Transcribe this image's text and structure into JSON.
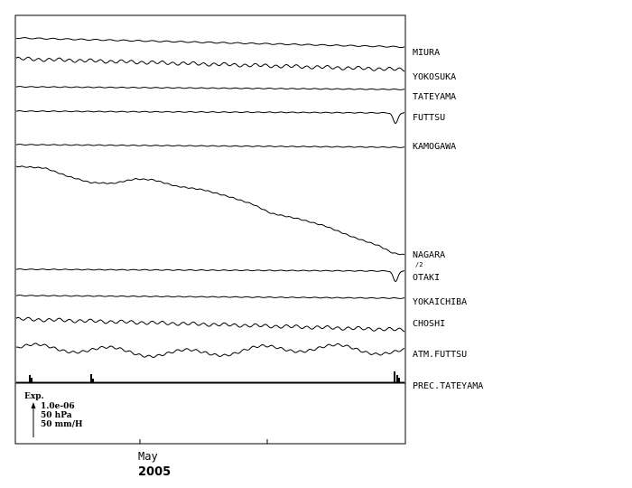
{
  "chart_data": {
    "type": "line",
    "title": "",
    "xlabel": "",
    "ylabel": "",
    "x_axis": {
      "month_label": "May",
      "year_label": "2005"
    },
    "grid": false,
    "legend": {
      "label": "Exp.",
      "scale_entries": [
        "1.0e-06",
        "50 hPa",
        "50 mm/H"
      ]
    },
    "series": [
      {
        "name": "MIURA",
        "style": "drift-down-right"
      },
      {
        "name": "YOKOSUKA",
        "style": "wavy"
      },
      {
        "name": "TATEYAMA",
        "style": "flat"
      },
      {
        "name": "FUTTSU",
        "style": "flat-with-end-dip"
      },
      {
        "name": "KAMOGAWA",
        "style": "flat"
      },
      {
        "name": "NAGARA",
        "style": "long-decline",
        "sublabel": "/2"
      },
      {
        "name": "OTAKI",
        "style": "flat-with-end-dip"
      },
      {
        "name": "YOKAICHIBA",
        "style": "flat"
      },
      {
        "name": "CHOSHI",
        "style": "wavy"
      },
      {
        "name": "ATM.FUTTSU",
        "style": "pressure"
      },
      {
        "name": "PREC.TATEYAMA",
        "style": "precipitation"
      }
    ]
  }
}
